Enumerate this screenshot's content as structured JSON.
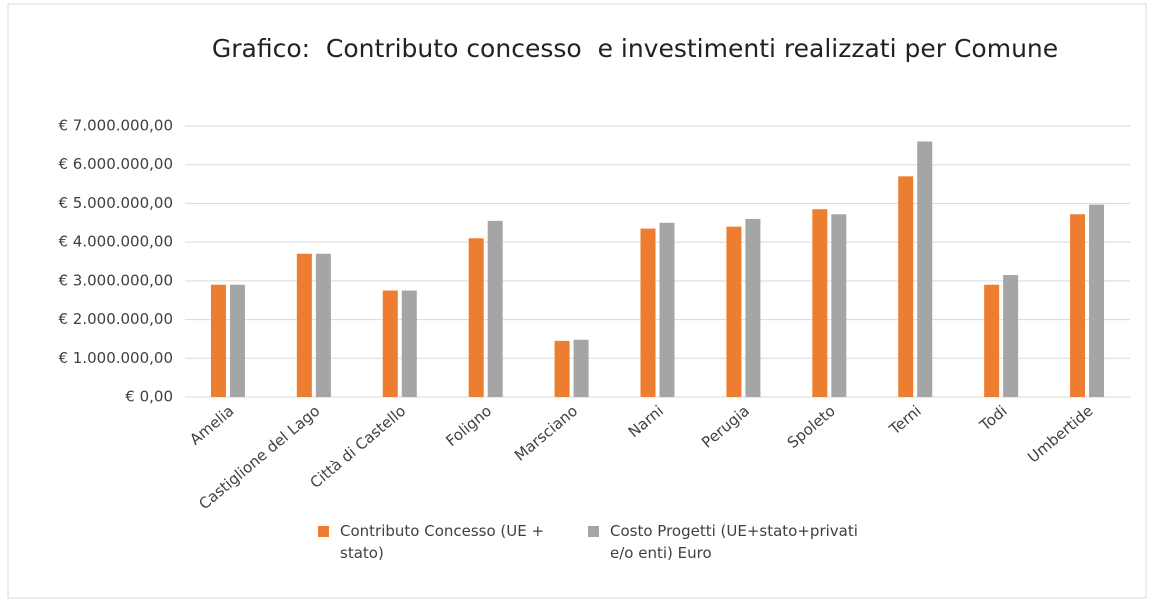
{
  "chart_data": {
    "type": "bar",
    "title": "Grafico:  Contributo concesso  e investimenti realizzati per Comune",
    "categories": [
      "Amelia",
      "Castiglione del Lago",
      "Città di Castello",
      "Foligno",
      "Marsciano",
      "Narni",
      "Perugia",
      "Spoleto",
      "Terni",
      "Todi",
      "Umbertide"
    ],
    "series": [
      {
        "name": "Contributo Concesso (UE + stato)",
        "color": "#ed7d31",
        "values": [
          2900000,
          3700000,
          2750000,
          4100000,
          1450000,
          4350000,
          4400000,
          4850000,
          5700000,
          2900000,
          4720000
        ]
      },
      {
        "name": "Costo Progetti (UE+stato+privati e/o enti) Euro",
        "color": "#a5a5a5",
        "values": [
          2900000,
          3700000,
          2750000,
          4550000,
          1480000,
          4500000,
          4600000,
          4720000,
          6600000,
          3150000,
          4970000
        ]
      }
    ],
    "ylim": [
      0,
      7000000
    ],
    "yticks": [
      {
        "value": 0,
        "label": "€ 0,00"
      },
      {
        "value": 1000000,
        "label": "€ 1.000.000,00"
      },
      {
        "value": 2000000,
        "label": "€ 2.000.000,00"
      },
      {
        "value": 3000000,
        "label": "€ 3.000.000,00"
      },
      {
        "value": 4000000,
        "label": "€ 4.000.000,00"
      },
      {
        "value": 5000000,
        "label": "€ 5.000.000,00"
      },
      {
        "value": 6000000,
        "label": "€ 6.000.000,00"
      },
      {
        "value": 7000000,
        "label": "€ 7.000.000,00"
      }
    ],
    "grid": true
  }
}
